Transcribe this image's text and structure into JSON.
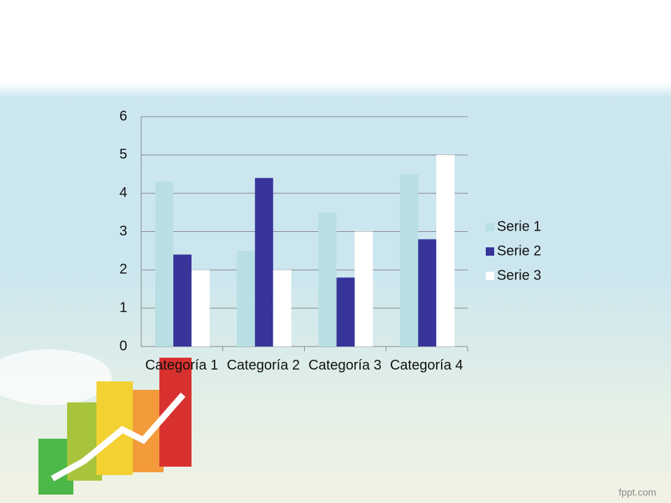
{
  "chart_data": {
    "type": "bar",
    "categories": [
      "Categoría 1",
      "Categoría 2",
      "Categoría 3",
      "Categoría 4"
    ],
    "series": [
      {
        "name": "Serie 1",
        "color": "#b8dfe3",
        "values": [
          4.3,
          2.5,
          3.5,
          4.5
        ]
      },
      {
        "name": "Serie 2",
        "color": "#37349a",
        "values": [
          2.4,
          4.4,
          1.8,
          2.8
        ]
      },
      {
        "name": "Serie 3",
        "color": "#ffffff",
        "values": [
          2,
          2,
          3,
          5
        ]
      }
    ],
    "ylim": [
      0,
      6
    ],
    "yticks": [
      0,
      1,
      2,
      3,
      4,
      5,
      6
    ],
    "grid": true,
    "legend": "right"
  },
  "watermark": "fppt.com"
}
